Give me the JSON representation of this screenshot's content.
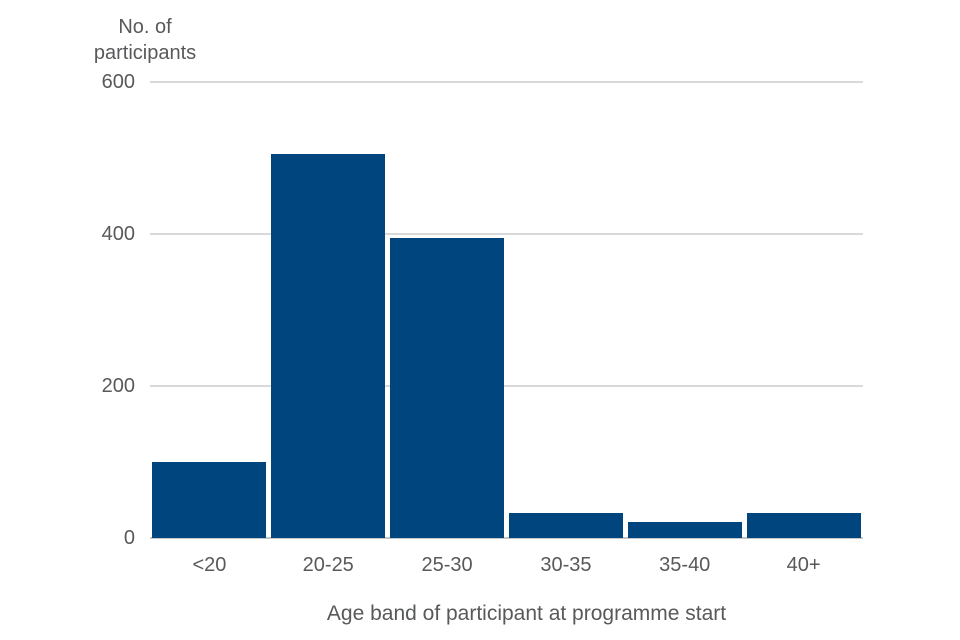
{
  "chart_data": {
    "type": "bar",
    "title": "",
    "ylabel": "No. of participants",
    "xlabel": "Age band of participant at programme start",
    "categories": [
      "<20",
      "20-25",
      "25-30",
      "30-35",
      "35-40",
      "40+"
    ],
    "values": [
      100,
      505,
      395,
      33,
      21,
      33
    ],
    "ylim": [
      0,
      600
    ],
    "yticks": [
      600,
      400,
      200,
      0
    ],
    "grid": "horizontal-gridlines-at-yticks",
    "legend": "none",
    "colors": {
      "bar": "#00457d",
      "gridline": "#d9d9d9",
      "axis_line": "#c6c6c6",
      "text": "#58595b",
      "background": "#ffffff"
    }
  }
}
